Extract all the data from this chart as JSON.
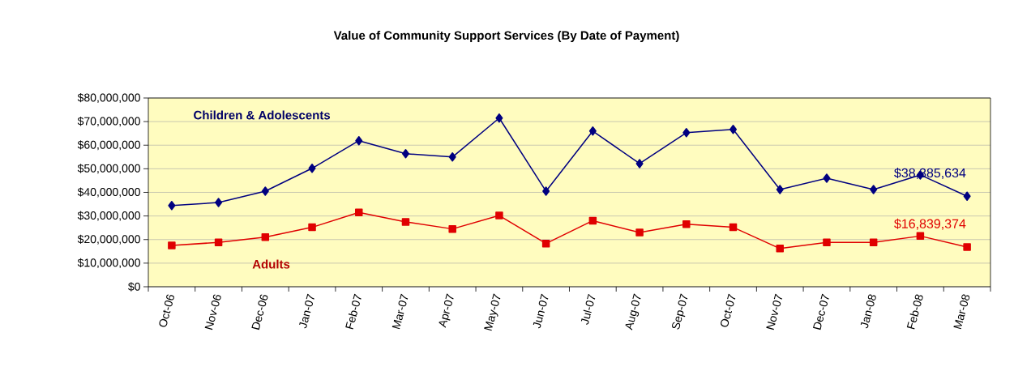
{
  "chart_data": {
    "type": "line",
    "title": "Value of Community Support Services (By Date of Payment)",
    "categories": [
      "Oct-06",
      "Nov-06",
      "Dec-06",
      "Jan-07",
      "Feb-07",
      "Mar-07",
      "Apr-07",
      "May-07",
      "Jun-07",
      "Jul-07",
      "Aug-07",
      "Sep-07",
      "Oct-07",
      "Nov-07",
      "Dec-07",
      "Jan-08",
      "Feb-08",
      "Mar-08"
    ],
    "series": [
      {
        "name": "Children & Adolescents",
        "color": "#000080",
        "marker": "diamond",
        "values": [
          34400000,
          35700000,
          40500000,
          50200000,
          61900000,
          56400000,
          55000000,
          71500000,
          40500000,
          66000000,
          52200000,
          65300000,
          66700000,
          41200000,
          46000000,
          41200000,
          47400000,
          38385634
        ],
        "value_labels": [
          null,
          null,
          null,
          null,
          null,
          null,
          null,
          null,
          null,
          null,
          null,
          null,
          null,
          null,
          null,
          null,
          null,
          "$38,385,634"
        ]
      },
      {
        "name": "Adults",
        "color": "#e00000",
        "marker": "square",
        "values": [
          17500000,
          18800000,
          21000000,
          25200000,
          31500000,
          27500000,
          24500000,
          30200000,
          18300000,
          28000000,
          23000000,
          26500000,
          25200000,
          16200000,
          18800000,
          18800000,
          21500000,
          16839374
        ],
        "value_labels": [
          null,
          null,
          null,
          null,
          null,
          null,
          null,
          null,
          null,
          null,
          null,
          null,
          null,
          null,
          null,
          null,
          null,
          "$16,839,374"
        ]
      }
    ],
    "ylim": [
      0,
      80000000
    ],
    "yticks": [
      {
        "value": 0,
        "label": "$0"
      },
      {
        "value": 10000000,
        "label": "$10,000,000"
      },
      {
        "value": 20000000,
        "label": "$20,000,000"
      },
      {
        "value": 30000000,
        "label": "$30,000,000"
      },
      {
        "value": 40000000,
        "label": "$40,000,000"
      },
      {
        "value": 50000000,
        "label": "$50,000,000"
      },
      {
        "value": 60000000,
        "label": "$60,000,000"
      },
      {
        "value": 70000000,
        "label": "$70,000,000"
      },
      {
        "value": 80000000,
        "label": "$80,000,000"
      }
    ],
    "grid": "y",
    "legend": false,
    "line_style": "solid"
  }
}
